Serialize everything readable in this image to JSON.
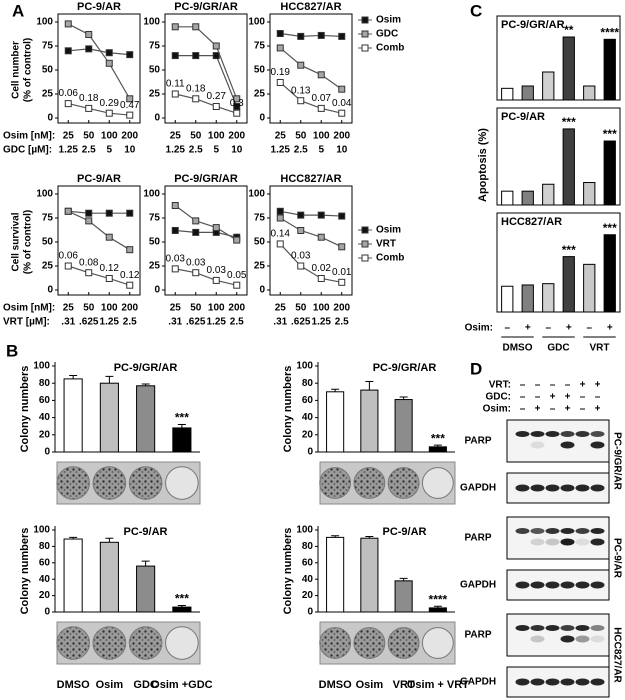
{
  "panel_labels": [
    "A",
    "B",
    "C",
    "D"
  ],
  "chart_data": [
    {
      "type": "line",
      "title": "PC-9/AR",
      "ylabel": [
        "Cell number",
        "(% of control)"
      ],
      "x_row_labels": [
        "Osim [nM]:",
        "GDC [µM]:"
      ],
      "categories": [
        "25",
        "50",
        "100",
        "200"
      ],
      "categories2": [
        "1.25",
        "2.5",
        "5",
        "10"
      ],
      "ylim": [
        0,
        100
      ],
      "yticks": [
        0,
        25,
        50,
        75,
        100
      ],
      "series": [
        {
          "name": "Osim",
          "color": "#111111",
          "values": [
            70,
            72,
            68,
            66
          ]
        },
        {
          "name": "GDC",
          "color": "#a6a6a6",
          "values": [
            98,
            87,
            57,
            20
          ]
        },
        {
          "name": "Comb",
          "color": "#ffffff",
          "values": [
            15,
            10,
            5,
            3
          ],
          "ci_labels": [
            "0.06",
            "0.18",
            "0.29",
            "0.47"
          ]
        }
      ]
    },
    {
      "type": "line",
      "title": "PC-9/GR/AR",
      "categories": [
        "25",
        "50",
        "100",
        "200"
      ],
      "categories2": [
        "1.25",
        "2.5",
        "5",
        "10"
      ],
      "ylim": [
        0,
        100
      ],
      "yticks": [
        0,
        25,
        50,
        75,
        100
      ],
      "series": [
        {
          "name": "Osim",
          "color": "#111111",
          "values": [
            65,
            65,
            65,
            12
          ]
        },
        {
          "name": "GDC",
          "color": "#a6a6a6",
          "values": [
            95,
            95,
            75,
            20
          ]
        },
        {
          "name": "Comb",
          "color": "#ffffff",
          "values": [
            25,
            20,
            12,
            5
          ],
          "ci_labels": [
            "0.11",
            "0.18",
            "0.27",
            "0.3"
          ]
        }
      ]
    },
    {
      "type": "line",
      "title": "HCC827/AR",
      "legend": "top-right-outside",
      "categories": [
        "25",
        "50",
        "100",
        "200"
      ],
      "categories2": [
        "1.25",
        "2.5",
        "5",
        "10"
      ],
      "ylim": [
        0,
        100
      ],
      "yticks": [
        0,
        25,
        50,
        75,
        100
      ],
      "series": [
        {
          "name": "Osim",
          "color": "#111111",
          "values": [
            88,
            85,
            86,
            85
          ]
        },
        {
          "name": "GDC",
          "color": "#a6a6a6",
          "values": [
            73,
            55,
            45,
            30
          ]
        },
        {
          "name": "Comb",
          "color": "#ffffff",
          "values": [
            37,
            18,
            10,
            5
          ],
          "ci_labels": [
            "0.19",
            "0.13",
            "0.07",
            "0.04"
          ]
        }
      ]
    },
    {
      "type": "line",
      "title": "PC-9/AR",
      "ylabel": [
        "Cell survival",
        "(% of control)"
      ],
      "x_row_labels": [
        "Osim [nM]:",
        "VRT [µM]:"
      ],
      "categories": [
        "25",
        "50",
        "100",
        "200"
      ],
      "categories2": [
        ".31",
        ".625",
        "1.25",
        "2.5"
      ],
      "ylim": [
        0,
        100
      ],
      "yticks": [
        0,
        25,
        50,
        75,
        100
      ],
      "series": [
        {
          "name": "Osim",
          "color": "#111111",
          "values": [
            82,
            80,
            80,
            80
          ]
        },
        {
          "name": "VRT",
          "color": "#a6a6a6",
          "values": [
            82,
            72,
            55,
            42
          ]
        },
        {
          "name": "Comb",
          "color": "#ffffff",
          "values": [
            25,
            18,
            12,
            5
          ],
          "ci_labels": [
            "0.06",
            "0.08",
            "0.12",
            "0.12"
          ]
        }
      ]
    },
    {
      "type": "line",
      "title": "PC-9/GR/AR",
      "categories": [
        "25",
        "50",
        "100",
        "200"
      ],
      "categories2": [
        ".31",
        ".625",
        "1.25",
        "2.5"
      ],
      "ylim": [
        0,
        100
      ],
      "yticks": [
        0,
        25,
        50,
        75,
        100
      ],
      "series": [
        {
          "name": "Osim",
          "color": "#111111",
          "values": [
            62,
            60,
            60,
            55
          ]
        },
        {
          "name": "VRT",
          "color": "#a6a6a6",
          "values": [
            88,
            72,
            65,
            52
          ]
        },
        {
          "name": "Comb",
          "color": "#ffffff",
          "values": [
            22,
            18,
            10,
            5
          ],
          "ci_labels": [
            "0.03",
            "0.03",
            "0.03",
            "0.05"
          ]
        }
      ]
    },
    {
      "type": "line",
      "title": "HCC827/AR",
      "legend": "middle-right-outside",
      "categories": [
        "25",
        "50",
        "100",
        "200"
      ],
      "categories2": [
        ".31",
        ".625",
        "1.25",
        "2.5"
      ],
      "ylim": [
        0,
        100
      ],
      "yticks": [
        0,
        25,
        50,
        75,
        100
      ],
      "series": [
        {
          "name": "Osim",
          "color": "#111111",
          "values": [
            82,
            78,
            78,
            77
          ]
        },
        {
          "name": "VRT",
          "color": "#a6a6a6",
          "values": [
            75,
            62,
            55,
            45
          ]
        },
        {
          "name": "Comb",
          "color": "#ffffff",
          "values": [
            48,
            25,
            12,
            8
          ],
          "ci_labels": [
            "0.14",
            "0.03",
            "0.02",
            "0.01"
          ]
        }
      ]
    },
    {
      "type": "bar",
      "title": "PC-9/GR/AR",
      "ylabel": "Colony numbers",
      "ylim": [
        0,
        100
      ],
      "yticks": [
        0,
        20,
        40,
        60,
        80,
        100
      ],
      "values": [
        85,
        80,
        77,
        28
      ],
      "errors": [
        4,
        8,
        2,
        4
      ],
      "colors": [
        "#ffffff",
        "#bfbfbf",
        "#8c8c8c",
        "#000000"
      ],
      "significance": [
        null,
        null,
        null,
        "***"
      ]
    },
    {
      "type": "bar",
      "title": "PC-9/GR/AR",
      "ylabel": "Colony numbers",
      "ylim": [
        0,
        100
      ],
      "yticks": [
        0,
        20,
        40,
        60,
        80,
        100
      ],
      "values": [
        70,
        72,
        61,
        6
      ],
      "errors": [
        3,
        10,
        3,
        2
      ],
      "colors": [
        "#ffffff",
        "#bfbfbf",
        "#8c8c8c",
        "#000000"
      ],
      "significance": [
        null,
        null,
        null,
        "***"
      ]
    },
    {
      "type": "bar",
      "title": "PC-9/AR",
      "ylabel": "Colony numbers",
      "ylim": [
        0,
        100
      ],
      "yticks": [
        0,
        20,
        40,
        60,
        80,
        100
      ],
      "categories": [
        "DMSO",
        "Osim",
        "GDC",
        "Osim +GDC"
      ],
      "values": [
        89,
        85,
        56,
        6
      ],
      "errors": [
        2,
        5,
        6,
        2
      ],
      "colors": [
        "#ffffff",
        "#bfbfbf",
        "#8c8c8c",
        "#000000"
      ],
      "significance": [
        null,
        null,
        null,
        "***"
      ]
    },
    {
      "type": "bar",
      "title": "PC-9/AR",
      "ylabel": "Colony numbers",
      "ylim": [
        0,
        100
      ],
      "yticks": [
        0,
        20,
        40,
        60,
        80,
        100
      ],
      "categories": [
        "DMSO",
        "Osim",
        "VRT",
        "Osim + VRT"
      ],
      "values": [
        91,
        90,
        38,
        5
      ],
      "errors": [
        2,
        2,
        3,
        2
      ],
      "colors": [
        "#ffffff",
        "#bfbfbf",
        "#8c8c8c",
        "#000000"
      ],
      "significance": [
        null,
        null,
        null,
        "****"
      ]
    },
    {
      "type": "bar",
      "title": "PC-9/GR/AR",
      "ylabel": "Apoptosis (%)",
      "ylim": [
        0,
        30
      ],
      "values": [
        5,
        6,
        12,
        27,
        6,
        26
      ],
      "colors": [
        "#ffffff",
        "#808080",
        "#d0d0d0",
        "#404040",
        "#c8c8c8",
        "#000000"
      ],
      "significance": [
        null,
        null,
        null,
        "**",
        null,
        "****"
      ]
    },
    {
      "type": "bar",
      "title": "PC-9/AR",
      "ylim": [
        0,
        48
      ],
      "values": [
        8,
        8,
        12,
        44,
        13,
        37
      ],
      "colors": [
        "#ffffff",
        "#808080",
        "#d0d0d0",
        "#404040",
        "#c8c8c8",
        "#000000"
      ],
      "significance": [
        null,
        null,
        null,
        "***",
        null,
        "***"
      ]
    },
    {
      "type": "bar",
      "title": "HCC827/AR",
      "ylim": [
        0,
        66
      ],
      "values": [
        20,
        21,
        22,
        43,
        37,
        60
      ],
      "colors": [
        "#ffffff",
        "#808080",
        "#d0d0d0",
        "#404040",
        "#c8c8c8",
        "#000000"
      ],
      "significance": [
        null,
        null,
        null,
        "***",
        null,
        "***"
      ]
    }
  ],
  "c_xaxis": {
    "row_label": "Osim:",
    "signs": [
      "–",
      "+",
      "–",
      "+",
      "–",
      "+"
    ],
    "groups": [
      "DMSO",
      "GDC",
      "VRT"
    ]
  },
  "blot": {
    "rows": [
      {
        "label": "VRT:",
        "signs": [
          "–",
          "–",
          "–",
          "–",
          "+",
          "+"
        ]
      },
      {
        "label": "GDC:",
        "signs": [
          "–",
          "–",
          "+",
          "+",
          "–",
          "–"
        ]
      },
      {
        "label": "Osim:",
        "signs": [
          "–",
          "+",
          "–",
          "+",
          "–",
          "+"
        ]
      }
    ],
    "blocks": [
      {
        "cell_line": "PC-9/GR/AR",
        "bands": [
          "PARP",
          "GAPDH"
        ]
      },
      {
        "cell_line": "PC-9/AR",
        "bands": [
          "PARP",
          "GAPDH"
        ]
      },
      {
        "cell_line": "HCC827/AR",
        "bands": [
          "PARP",
          "GAPDH"
        ]
      }
    ]
  }
}
